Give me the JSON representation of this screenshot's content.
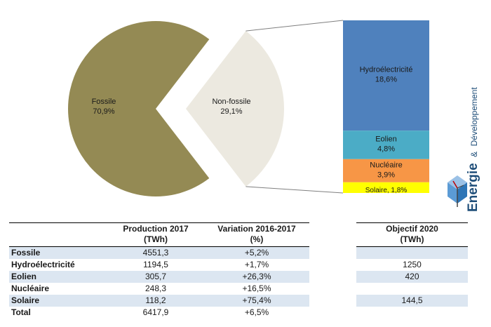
{
  "chart_data": {
    "type": "bar-of-pie",
    "pie": {
      "slices": [
        {
          "label": "Fossile",
          "percent_label": "70,9%",
          "value": 70.9,
          "color": "#948a54"
        },
        {
          "label": "Non-fossile",
          "percent_label": "29,1%",
          "value": 29.1,
          "color": "#ece9e0"
        }
      ]
    },
    "stacked_bar": {
      "segments": [
        {
          "label": "Hydroélectricité",
          "percent_label": "18,6%",
          "value": 18.6,
          "color": "#4f81bd"
        },
        {
          "label": "Eolien",
          "percent_label": "4,8%",
          "value": 4.8,
          "color": "#4bacc6"
        },
        {
          "label": "Nucléaire",
          "percent_label": "3,9%",
          "value": 3.9,
          "color": "#f79646"
        },
        {
          "label": "Solaire",
          "percent_label": "1,8%",
          "value": 1.8,
          "color": "#ffff00"
        }
      ]
    }
  },
  "logo": {
    "text_main": "Energie",
    "text_amp": "&",
    "text_rest": "Développement",
    "color": "#1f4e79"
  },
  "table": {
    "headers": {
      "production_l1": "Production 2017",
      "production_l2": "(TWh)",
      "variation_l1": "Variation 2016-2017",
      "variation_l2": "(%)"
    },
    "rows": [
      {
        "label": "Fossile",
        "production": "4551,3",
        "variation": "+5,2%"
      },
      {
        "label": "Hydroélectricité",
        "production": "1194,5",
        "variation": "+1,7%"
      },
      {
        "label": "Eolien",
        "production": "305,7",
        "variation": "+26,3%"
      },
      {
        "label": "Nucléaire",
        "production": "248,3",
        "variation": "+16,5%"
      },
      {
        "label": "Solaire",
        "production": "118,2",
        "variation": "+75,4%"
      },
      {
        "label": "Total",
        "production": "6417,9",
        "variation": "+6,5%"
      }
    ]
  },
  "objective_table": {
    "header_l1": "Objectif 2020",
    "header_l2": "(TWh)",
    "values": [
      "",
      "1250",
      "420",
      "",
      "144,5",
      ""
    ]
  }
}
